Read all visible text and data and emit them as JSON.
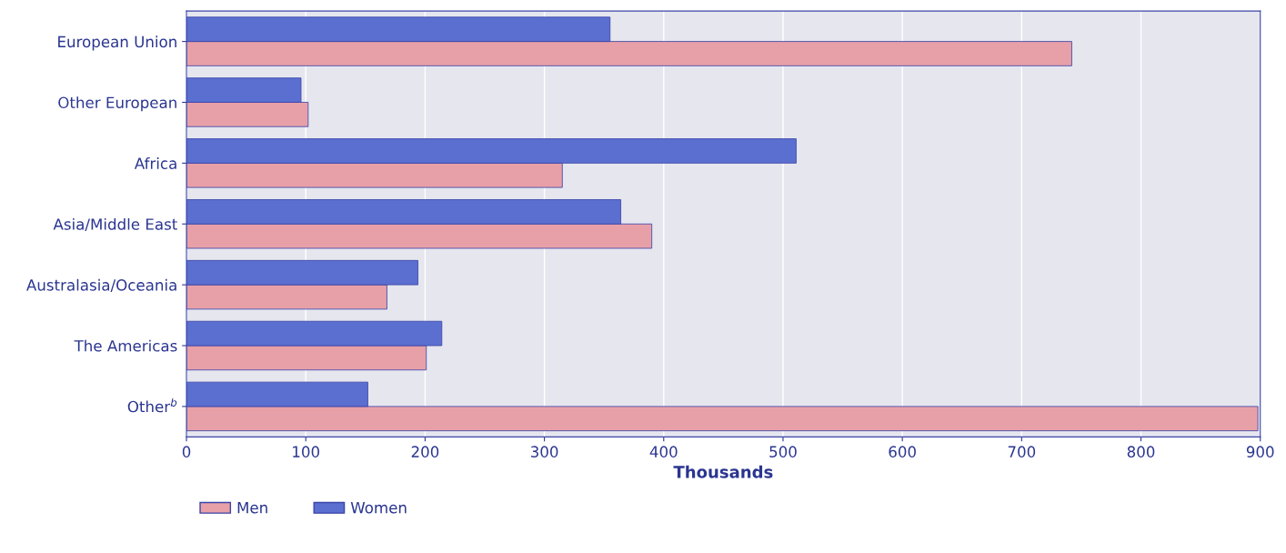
{
  "chart_data": {
    "type": "bar",
    "orientation": "horizontal",
    "xlabel": "Thousands",
    "categories": [
      "European Union",
      "Other European",
      "Africa",
      "Asia/Middle East",
      "Australasia/Oceania",
      "The Americas",
      "Other$^{b}$"
    ],
    "series": [
      {
        "name": "Men",
        "color": "#e8a0a8",
        "values": [
          742,
          102,
          315,
          390,
          168,
          201,
          898
        ]
      },
      {
        "name": "Women",
        "color": "#5b6fd0",
        "values": [
          355,
          96,
          511,
          364,
          194,
          214,
          152
        ]
      }
    ],
    "xlim": [
      0,
      900
    ],
    "xticks": [
      0,
      100,
      200,
      300,
      400,
      500,
      600,
      700,
      800,
      900
    ],
    "grid": "x",
    "legend": "bottom"
  }
}
